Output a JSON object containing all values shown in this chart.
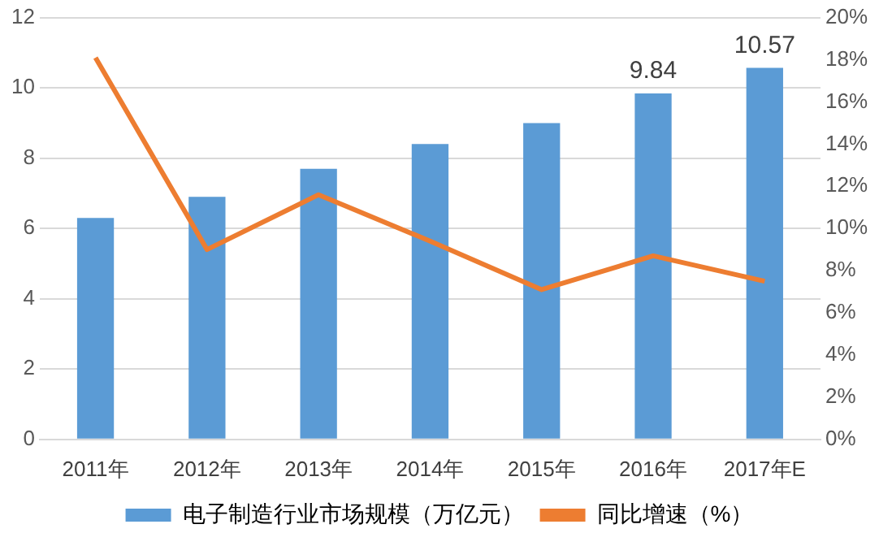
{
  "chart_data": {
    "type": "bar",
    "categories": [
      "2011年",
      "2012年",
      "2013年",
      "2014年",
      "2015年",
      "2016年",
      "2017年E"
    ],
    "series": [
      {
        "name": "电子制造行业市场规模（万亿元）",
        "color": "#5b9bd5",
        "values": [
          6.3,
          6.9,
          7.7,
          8.4,
          9.0,
          9.84,
          10.57
        ],
        "value_labels": [
          null,
          null,
          null,
          null,
          null,
          "9.84",
          "10.57"
        ]
      },
      {
        "name": "同比增速（%）",
        "type": "line",
        "axis": "y2",
        "color": "#ed7d31",
        "values": [
          18.1,
          9.0,
          11.6,
          9.4,
          7.1,
          8.7,
          7.5
        ]
      }
    ],
    "ylim": [
      0,
      12
    ],
    "yticks": [
      0,
      2,
      4,
      6,
      8,
      10,
      12
    ],
    "y2lim": [
      0,
      20
    ],
    "y2ticks": [
      {
        "value": 0,
        "label": "0%"
      },
      {
        "value": 2,
        "label": "2%"
      },
      {
        "value": 4,
        "label": "4%"
      },
      {
        "value": 6,
        "label": "6%"
      },
      {
        "value": 8,
        "label": "8%"
      },
      {
        "value": 10,
        "label": "10%"
      },
      {
        "value": 12,
        "label": "12%"
      },
      {
        "value": 14,
        "label": "14%"
      },
      {
        "value": 16,
        "label": "16%"
      },
      {
        "value": 18,
        "label": "18%"
      },
      {
        "value": 20,
        "label": "20%"
      }
    ],
    "grid": "y",
    "legend": "bottom",
    "marker": "none"
  }
}
